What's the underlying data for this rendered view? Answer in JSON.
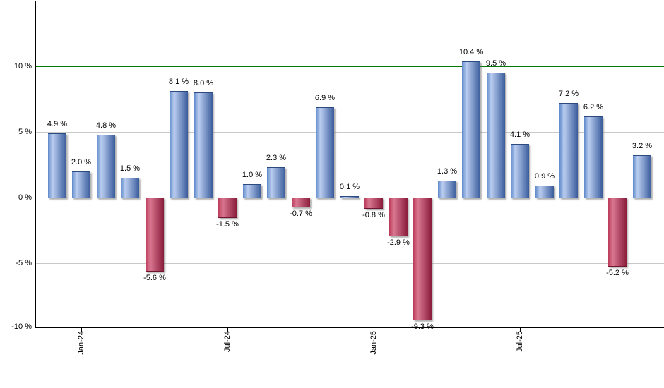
{
  "chart_data": {
    "type": "bar",
    "title": "",
    "xlabel": "",
    "ylabel": "",
    "values": [
      4.9,
      2.0,
      4.8,
      1.5,
      -5.6,
      8.1,
      8.0,
      -1.5,
      1.0,
      2.3,
      -0.7,
      6.9,
      0.1,
      -0.8,
      -2.9,
      -9.3,
      1.3,
      10.4,
      9.5,
      4.1,
      0.9,
      7.2,
      6.2,
      -5.2,
      3.2
    ],
    "bar_labels": [
      "4.9 %",
      "2.0 %",
      "4.8 %",
      "1.5 %",
      "-5.6 %",
      "8.1 %",
      "8.0 %",
      "-1.5 %",
      "1.0 %",
      "2.3 %",
      "-0.7 %",
      "6.9 %",
      "0.1 %",
      "-0.8 %",
      "-2.9 %",
      "-9.3 %",
      "1.3 %",
      "10.4 %",
      "9.5 %",
      "4.1 %",
      "0.9 %",
      "7.2 %",
      "6.2 %",
      "-5.2 %",
      "3.2 %"
    ],
    "x_tick_labels": [
      "Jan-24",
      "Jul-24",
      "Jan-25",
      "Jul-25"
    ],
    "x_tick_bar_indices": [
      1,
      7,
      13,
      19
    ],
    "y_tick_labels": [
      "10 %",
      "5 %",
      "0 %",
      "-5 %",
      "-10 %"
    ],
    "y_tick_values": [
      10,
      5,
      0,
      -5,
      -10
    ],
    "gridline_values": [
      15,
      5,
      0,
      -5
    ],
    "target_line_value": 10,
    "ylim": [
      -10,
      15.2
    ],
    "grid": true,
    "legend": false,
    "colors": {
      "positive_edge_left": "#6089c9",
      "positive_light": "#bacdf0",
      "positive_dark": "#3a5c9c",
      "positive_border": "#2c4a80",
      "negative_edge_left": "#bb3a5a",
      "negative_light": "#d97790",
      "negative_dark": "#8a1c3c",
      "negative_border": "#6e1530",
      "target_line": "#007a00",
      "gridline": "#c9c9c9",
      "axis": "#000000",
      "background": "#ffffff"
    }
  }
}
